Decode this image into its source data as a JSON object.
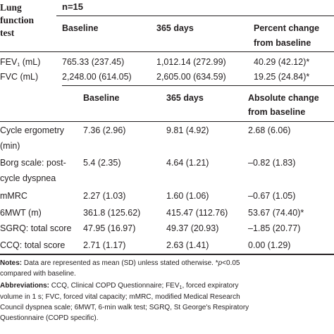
{
  "header": {
    "lung_function_test": [
      "Lung",
      "function",
      "test"
    ],
    "n": "n=15",
    "col_baseline": "Baseline",
    "col_365": "365 days",
    "col_pct_change": [
      "Percent change",
      "from baseline"
    ]
  },
  "lung_rows": [
    {
      "label": "FEV",
      "sub": "1",
      "unit": " (mL)",
      "baseline": "765.33 (237.45)",
      "d365": "1,012.14 (272.99)",
      "change": "40.29 (42.12)*"
    },
    {
      "label": "FVC (mL)",
      "sub": "",
      "unit": "",
      "baseline": "2,248.00 (614.05)",
      "d365": "2,605.00 (634.59)",
      "change": "19.25 (24.84)*"
    }
  ],
  "header2": {
    "col_baseline": "Baseline",
    "col_365": "365 days",
    "col_abs_change": [
      "Absolute change",
      "from baseline"
    ]
  },
  "other_rows": [
    {
      "label": [
        "Cycle ergometry",
        "(min)"
      ],
      "baseline": "7.36 (2.96)",
      "d365": "9.81 (4.92)",
      "change": "2.68 (6.06)"
    },
    {
      "label": [
        "Borg scale: post-",
        "cycle dyspnea"
      ],
      "baseline": "5.4 (2.35)",
      "d365": "4.64 (1.21)",
      "change": "–0.82 (1.83)"
    },
    {
      "label": [
        "mMRC"
      ],
      "baseline": "2.27 (1.03)",
      "d365": "1.60 (1.06)",
      "change": "–0.67 (1.05)"
    },
    {
      "label": [
        "6MWT (m)"
      ],
      "baseline": "361.8 (125.62)",
      "d365": "415.47 (112.76)",
      "change": "53.67 (74.40)*"
    },
    {
      "label": [
        "SGRQ: total score"
      ],
      "baseline": "47.95 (16.97)",
      "d365": "49.37 (20.93)",
      "change": "–1.85 (20.77)"
    },
    {
      "label": [
        "CCQ: total score"
      ],
      "baseline": "2.71 (1.17)",
      "d365": "2.63 (1.41)",
      "change": "0.00 (1.29)"
    }
  ],
  "notes": {
    "notes_label": "Notes:",
    "notes_line1": " Data are represented as mean (SD) unless stated otherwise. *",
    "notes_p": "p",
    "notes_line1_end": "<0.05",
    "notes_line2": "compared with baseline.",
    "abbr_label": "Abbreviations:",
    "abbr_line1": " CCQ, Clinical COPD Questionnaire; FEV",
    "abbr_line1_sub": "1",
    "abbr_line1_end": ", forced expiratory",
    "abbr_line2": "volume in 1 s; FVC, forced vital capacity; mMRC, modified Medical Research",
    "abbr_line3": "Council dyspnea scale; 6MWT, 6-min walk test; SGRQ, St George's Respiratory",
    "abbr_line4": "Questionnaire (COPD specific)."
  }
}
